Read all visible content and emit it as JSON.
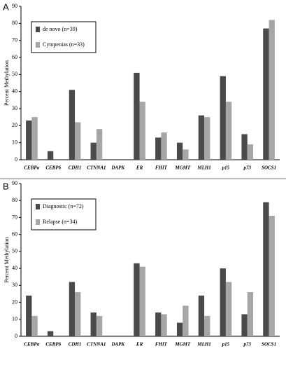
{
  "chart_data": [
    {
      "type": "bar",
      "panel": "A",
      "y_label": "Percent Methylation",
      "categories": [
        "CEBPα",
        "CEBPδ",
        "CDH1",
        "CTNNA1",
        "DAPK",
        "ER",
        "FHIT",
        "MGMT",
        "MLH1",
        "p15",
        "p73",
        "SOCS1"
      ],
      "series": [
        {
          "name": "de novo (n=39)",
          "color": "#4a4a4a",
          "values": [
            23,
            5,
            41,
            10,
            0,
            51,
            13,
            10,
            26,
            49,
            15,
            77
          ]
        },
        {
          "name": "Cytopenias (n=33)",
          "color": "#a6a6a6",
          "values": [
            25,
            0,
            22,
            18,
            0,
            34,
            16,
            6,
            25,
            34,
            9,
            82
          ]
        }
      ],
      "ylim": [
        0,
        90
      ],
      "yticks": [
        0,
        10,
        20,
        30,
        40,
        50,
        60,
        70,
        80,
        90
      ],
      "grid": false,
      "legend": "top-left"
    },
    {
      "type": "bar",
      "panel": "B",
      "y_label": "Percent Methylation",
      "categories": [
        "CEBPα",
        "CEBPδ",
        "CDH1",
        "CTNNA1",
        "DAPK",
        "ER",
        "FHIT",
        "MGMT",
        "MLH1",
        "p15",
        "p73",
        "SOCS1"
      ],
      "series": [
        {
          "name": "Diagnostic (n=72)",
          "color": "#4a4a4a",
          "values": [
            24,
            3,
            32,
            14,
            0,
            43,
            14,
            8,
            24,
            40,
            13,
            79
          ]
        },
        {
          "name": "Relapse (n=34)",
          "color": "#a6a6a6",
          "values": [
            12,
            0,
            26,
            12,
            0,
            41,
            13,
            18,
            12,
            32,
            26,
            71
          ]
        }
      ],
      "ylim": [
        0,
        90
      ],
      "yticks": [
        0,
        10,
        20,
        30,
        40,
        50,
        60,
        70,
        80,
        90
      ],
      "grid": false,
      "legend": "top-left"
    }
  ]
}
